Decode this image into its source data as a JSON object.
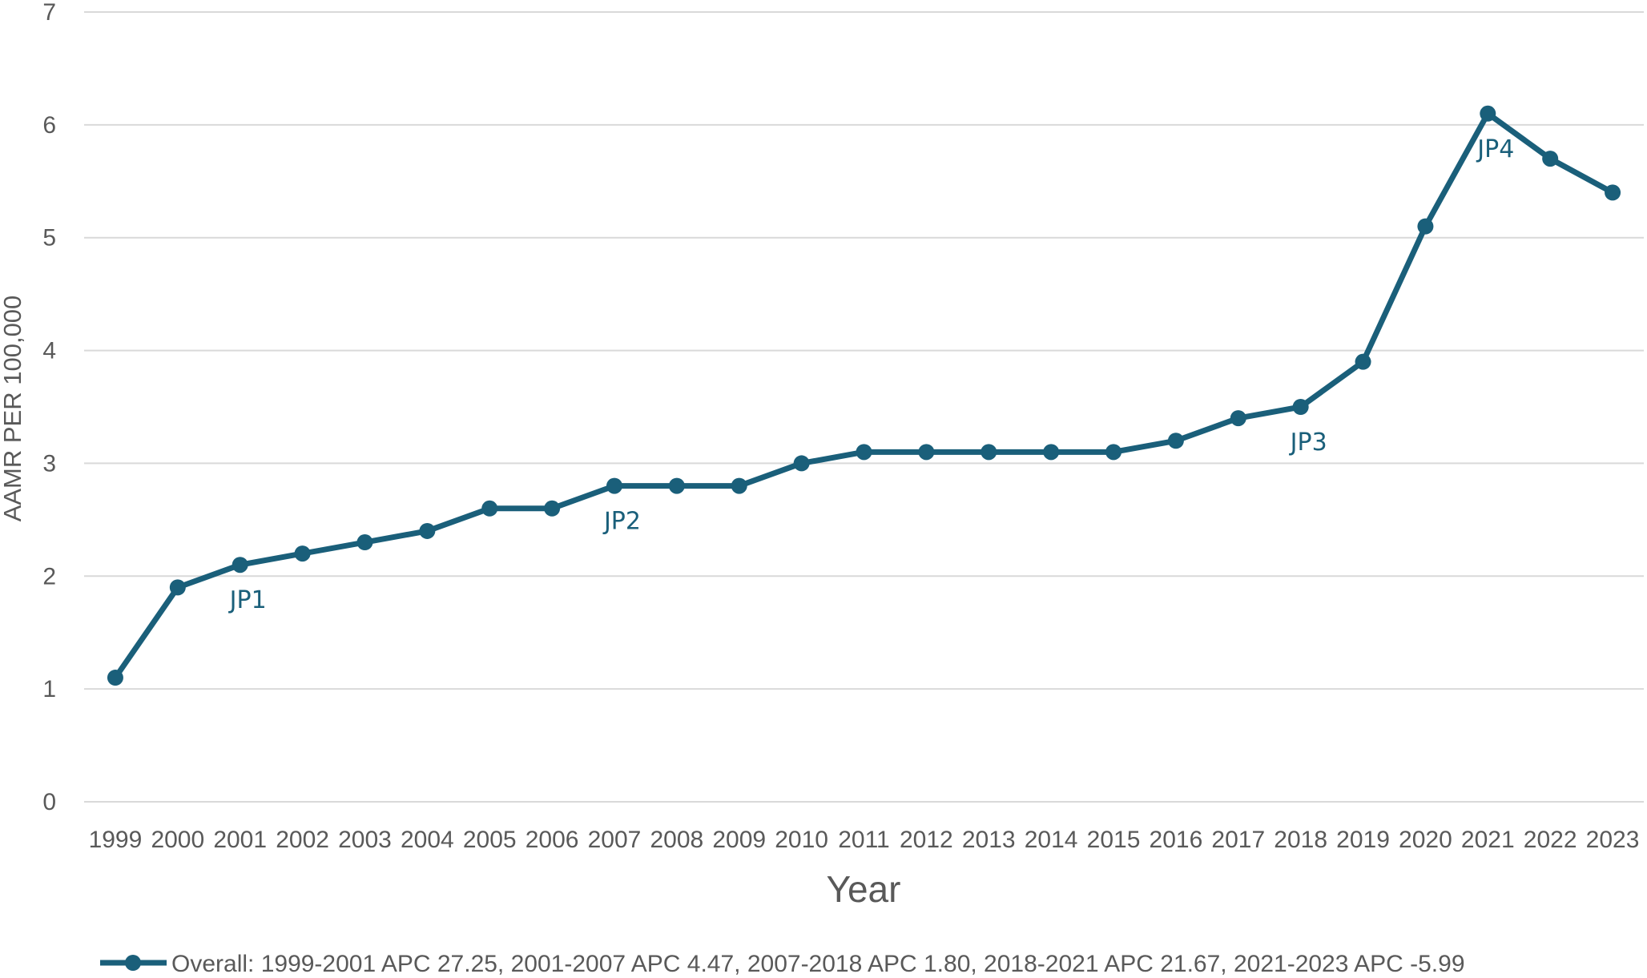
{
  "chart_data": {
    "type": "line",
    "title": "",
    "xlabel": "Year",
    "ylabel": "AAMR PER 100,000",
    "ylim": [
      0,
      7
    ],
    "yticks": [
      "0",
      "1",
      "2",
      "3",
      "4",
      "5",
      "6",
      "7"
    ],
    "grid": true,
    "legend_position": "bottom",
    "categories": [
      "1999",
      "2000",
      "2001",
      "2002",
      "2003",
      "2004",
      "2005",
      "2006",
      "2007",
      "2008",
      "2009",
      "2010",
      "2011",
      "2012",
      "2013",
      "2014",
      "2015",
      "2016",
      "2017",
      "2018",
      "2019",
      "2020",
      "2021",
      "2022",
      "2023"
    ],
    "series": [
      {
        "name": "Overall: 1999-2001 APC 27.25, 2001-2007 APC 4.47, 2007-2018 APC 1.80, 2018-2021 APC 21.67, 2021-2023 APC -5.99",
        "color": "#1a5f7a",
        "values": [
          1.1,
          1.9,
          2.1,
          2.2,
          2.3,
          2.4,
          2.6,
          2.6,
          2.8,
          2.8,
          2.8,
          3.0,
          3.1,
          3.1,
          3.1,
          3.1,
          3.1,
          3.2,
          3.4,
          3.5,
          3.9,
          5.1,
          6.1,
          5.7,
          5.4
        ]
      }
    ],
    "annotations": [
      {
        "text": "JP1",
        "x": "2001",
        "placement": "below"
      },
      {
        "text": "JP2",
        "x": "2007",
        "placement": "below"
      },
      {
        "text": "JP3",
        "x": "2018",
        "placement": "below"
      },
      {
        "text": "JP4",
        "x": "2021",
        "placement": "below"
      }
    ]
  }
}
